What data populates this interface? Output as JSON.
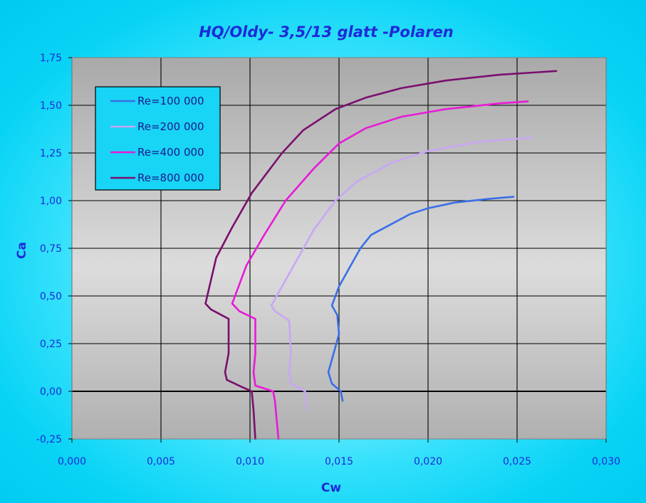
{
  "chart_data": {
    "type": "line",
    "title": "HQ/Oldy- 3,5/13 glatt -Polaren",
    "xlabel": "Cw",
    "ylabel": "Ca",
    "xlim": [
      0.0,
      0.03
    ],
    "ylim": [
      -0.25,
      1.75
    ],
    "x_ticks": [
      "0,000",
      "0,005",
      "0,010",
      "0,015",
      "0,020",
      "0,025",
      "0,030"
    ],
    "y_ticks": [
      "-0,25",
      "0,00",
      "0,25",
      "0,50",
      "0,75",
      "1,00",
      "1,25",
      "1,50",
      "1,75"
    ],
    "grid": true,
    "legend_position": "top-left",
    "series": [
      {
        "name": "Re=100 000",
        "color": "#3a6fe8",
        "points": [
          [
            0.0152,
            -0.05
          ],
          [
            0.0151,
            0.0
          ],
          [
            0.0146,
            0.04
          ],
          [
            0.0144,
            0.1
          ],
          [
            0.0147,
            0.2
          ],
          [
            0.015,
            0.3
          ],
          [
            0.0149,
            0.4
          ],
          [
            0.0146,
            0.45
          ],
          [
            0.015,
            0.55
          ],
          [
            0.0156,
            0.65
          ],
          [
            0.0162,
            0.75
          ],
          [
            0.0168,
            0.82
          ],
          [
            0.018,
            0.88
          ],
          [
            0.019,
            0.93
          ],
          [
            0.02,
            0.96
          ],
          [
            0.0215,
            0.99
          ],
          [
            0.0235,
            1.01
          ],
          [
            0.0248,
            1.02
          ]
        ]
      },
      {
        "name": "Re=200 000",
        "color": "#c9a6f5",
        "points": [
          [
            0.0132,
            -0.1
          ],
          [
            0.0131,
            0.0
          ],
          [
            0.0123,
            0.04
          ],
          [
            0.0122,
            0.1
          ],
          [
            0.0123,
            0.2
          ],
          [
            0.0122,
            0.37
          ],
          [
            0.0114,
            0.42
          ],
          [
            0.0112,
            0.45
          ],
          [
            0.0118,
            0.55
          ],
          [
            0.0127,
            0.7
          ],
          [
            0.0136,
            0.85
          ],
          [
            0.0148,
            1.0
          ],
          [
            0.016,
            1.1
          ],
          [
            0.018,
            1.2
          ],
          [
            0.02,
            1.26
          ],
          [
            0.023,
            1.31
          ],
          [
            0.0258,
            1.33
          ]
        ]
      },
      {
        "name": "Re=400 000",
        "color": "#e81ad8",
        "points": [
          [
            0.0116,
            -0.25
          ],
          [
            0.0115,
            -0.15
          ],
          [
            0.0114,
            -0.05
          ],
          [
            0.0113,
            0.0
          ],
          [
            0.0103,
            0.03
          ],
          [
            0.0102,
            0.1
          ],
          [
            0.0103,
            0.2
          ],
          [
            0.0103,
            0.38
          ],
          [
            0.0094,
            0.42
          ],
          [
            0.009,
            0.46
          ],
          [
            0.0098,
            0.66
          ],
          [
            0.0108,
            0.82
          ],
          [
            0.012,
            1.0
          ],
          [
            0.0136,
            1.17
          ],
          [
            0.015,
            1.3
          ],
          [
            0.0165,
            1.38
          ],
          [
            0.0185,
            1.44
          ],
          [
            0.021,
            1.48
          ],
          [
            0.024,
            1.51
          ],
          [
            0.0256,
            1.52
          ]
        ]
      },
      {
        "name": "Re=800 000",
        "color": "#7a0f6e",
        "points": [
          [
            0.0103,
            -0.25
          ],
          [
            0.0102,
            -0.1
          ],
          [
            0.0101,
            0.0
          ],
          [
            0.0096,
            0.02
          ],
          [
            0.0087,
            0.06
          ],
          [
            0.0086,
            0.1
          ],
          [
            0.0088,
            0.2
          ],
          [
            0.0088,
            0.38
          ],
          [
            0.0078,
            0.43
          ],
          [
            0.0075,
            0.46
          ],
          [
            0.0081,
            0.7
          ],
          [
            0.009,
            0.86
          ],
          [
            0.0101,
            1.04
          ],
          [
            0.0118,
            1.25
          ],
          [
            0.013,
            1.37
          ],
          [
            0.0148,
            1.48
          ],
          [
            0.0165,
            1.54
          ],
          [
            0.0185,
            1.59
          ],
          [
            0.021,
            1.63
          ],
          [
            0.024,
            1.66
          ],
          [
            0.0272,
            1.68
          ]
        ]
      }
    ]
  }
}
